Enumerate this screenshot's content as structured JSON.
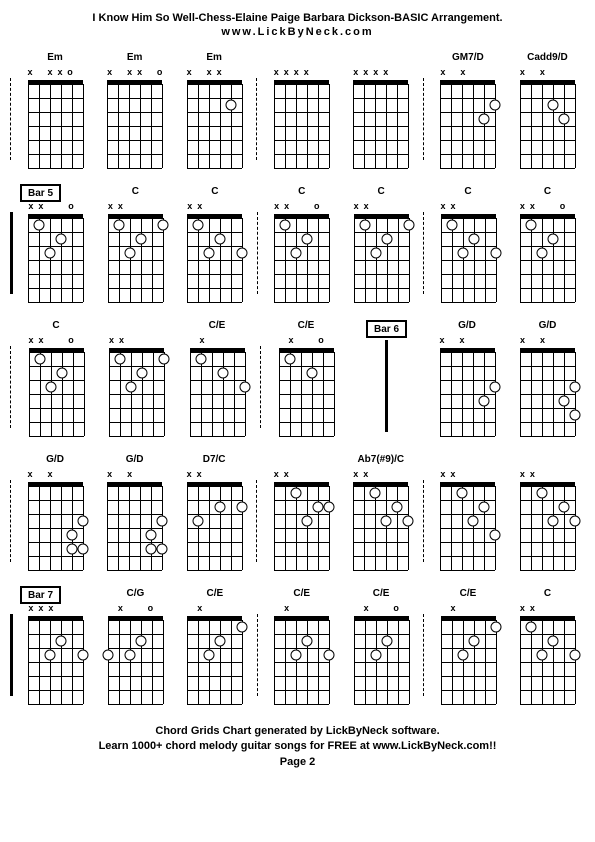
{
  "title": "I Know Him So Well-Chess-Elaine Paige Barbara Dickson-BASIC Arrangement.",
  "subtitle": "www.LickByNeck.com",
  "footer_line1": "Chord Grids Chart generated by LickByNeck software.",
  "footer_line2": "Learn 1000+ chord melody guitar songs for FREE at www.LickByNeck.com!!",
  "footer_line3": "Page 2",
  "colors": {
    "bg": "#ffffff",
    "fg": "#000000"
  },
  "fretboard": {
    "strings": 6,
    "frets": 6,
    "width": 55,
    "height": 88
  },
  "rows": [
    {
      "leading_bar": true,
      "bar_style": "dash",
      "cells": [
        {
          "label": "Em",
          "marks": [
            "x",
            "",
            "x",
            "x",
            "o",
            ""
          ],
          "dots": [],
          "after_bar": false
        },
        {
          "label": "Em",
          "marks": [
            "x",
            "",
            "x",
            "x",
            "",
            "o"
          ],
          "dots": [],
          "after_bar": false
        },
        {
          "label": "Em",
          "marks": [
            "x",
            "",
            "x",
            "x",
            "",
            ""
          ],
          "dots": [
            [
              2,
              5
            ]
          ],
          "after_bar": true,
          "bar_style": "dash"
        },
        {
          "label": "",
          "marks": [
            "x",
            "x",
            "x",
            "x",
            "",
            ""
          ],
          "dots": [],
          "after_bar": false
        },
        {
          "label": "",
          "marks": [
            "x",
            "x",
            "x",
            "x",
            "",
            ""
          ],
          "dots": [],
          "after_bar": true,
          "bar_style": "dash"
        },
        {
          "label": "GM7/D",
          "marks": [
            "x",
            "",
            "x",
            "",
            "",
            ""
          ],
          "dots": [
            [
              2,
              6
            ],
            [
              3,
              5
            ]
          ],
          "after_bar": false
        },
        {
          "label": "Cadd9/D",
          "marks": [
            "x",
            "",
            "x",
            "",
            "",
            ""
          ],
          "dots": [
            [
              2,
              4
            ],
            [
              3,
              5
            ]
          ],
          "after_bar": false
        }
      ]
    },
    {
      "leading_bar": true,
      "bar_style": "solid",
      "bar_label": "Bar 5",
      "cells": [
        {
          "label": "",
          "marks": [
            "x",
            "x",
            "",
            "",
            "o",
            ""
          ],
          "dots": [
            [
              1,
              2
            ],
            [
              2,
              4
            ],
            [
              3,
              3
            ]
          ],
          "after_bar": false
        },
        {
          "label": "C",
          "marks": [
            "x",
            "x",
            "",
            "",
            "",
            ""
          ],
          "dots": [
            [
              1,
              2
            ],
            [
              1,
              6
            ],
            [
              2,
              4
            ],
            [
              3,
              3
            ]
          ],
          "after_bar": false
        },
        {
          "label": "C",
          "marks": [
            "x",
            "x",
            "",
            "",
            "",
            ""
          ],
          "dots": [
            [
              1,
              2
            ],
            [
              2,
              4
            ],
            [
              3,
              3
            ],
            [
              3,
              6
            ]
          ],
          "after_bar": true,
          "bar_style": "dash"
        },
        {
          "label": "C",
          "marks": [
            "x",
            "x",
            "",
            "",
            "o",
            ""
          ],
          "dots": [
            [
              1,
              2
            ],
            [
              2,
              4
            ],
            [
              3,
              3
            ]
          ],
          "after_bar": false
        },
        {
          "label": "C",
          "marks": [
            "x",
            "x",
            "",
            "",
            "",
            ""
          ],
          "dots": [
            [
              1,
              2
            ],
            [
              1,
              6
            ],
            [
              2,
              4
            ],
            [
              3,
              3
            ]
          ],
          "after_bar": true,
          "bar_style": "dash"
        },
        {
          "label": "C",
          "marks": [
            "x",
            "x",
            "",
            "",
            "",
            ""
          ],
          "dots": [
            [
              1,
              2
            ],
            [
              2,
              4
            ],
            [
              3,
              3
            ],
            [
              3,
              6
            ]
          ],
          "after_bar": false
        },
        {
          "label": "C",
          "marks": [
            "x",
            "x",
            "",
            "",
            "o",
            ""
          ],
          "dots": [
            [
              1,
              2
            ],
            [
              2,
              4
            ],
            [
              3,
              3
            ]
          ],
          "after_bar": false
        }
      ]
    },
    {
      "leading_bar": true,
      "bar_style": "dash",
      "cells": [
        {
          "label": "C",
          "marks": [
            "x",
            "x",
            "",
            "",
            "o",
            ""
          ],
          "dots": [
            [
              1,
              2
            ],
            [
              2,
              4
            ],
            [
              3,
              3
            ]
          ],
          "after_bar": false
        },
        {
          "label": "",
          "marks": [
            "x",
            "x",
            "",
            "",
            "",
            ""
          ],
          "dots": [
            [
              1,
              2
            ],
            [
              1,
              6
            ],
            [
              2,
              4
            ],
            [
              3,
              3
            ]
          ],
          "after_bar": false
        },
        {
          "label": "C/E",
          "marks": [
            "",
            "x",
            "",
            "",
            "",
            ""
          ],
          "dots": [
            [
              1,
              2
            ],
            [
              2,
              4
            ],
            [
              3,
              6
            ]
          ],
          "after_bar": true,
          "bar_style": "dash"
        },
        {
          "label": "C/E",
          "marks": [
            "",
            "x",
            "",
            "",
            "o",
            ""
          ],
          "dots": [
            [
              1,
              2
            ],
            [
              2,
              4
            ]
          ],
          "after_bar": false
        },
        {
          "label": "Bar 6",
          "is_bar_cell": true,
          "bar_label": "Bar 6",
          "after_bar": false,
          "bar_after_style": "solid"
        },
        {
          "label": "G/D",
          "marks": [
            "x",
            "",
            "x",
            "",
            "",
            ""
          ],
          "dots": [
            [
              3,
              6
            ],
            [
              4,
              5
            ]
          ],
          "after_bar": false
        },
        {
          "label": "G/D",
          "marks": [
            "x",
            "",
            "x",
            "",
            "",
            ""
          ],
          "dots": [
            [
              3,
              6
            ],
            [
              4,
              5
            ],
            [
              5,
              6
            ]
          ],
          "after_bar": false
        }
      ]
    },
    {
      "leading_bar": true,
      "bar_style": "dash",
      "cells": [
        {
          "label": "G/D",
          "marks": [
            "x",
            "",
            "x",
            "",
            "",
            ""
          ],
          "dots": [
            [
              3,
              6
            ],
            [
              4,
              5
            ],
            [
              5,
              5
            ],
            [
              5,
              6
            ]
          ],
          "after_bar": false
        },
        {
          "label": "G/D",
          "marks": [
            "x",
            "",
            "x",
            "",
            "",
            ""
          ],
          "dots": [
            [
              3,
              6
            ],
            [
              4,
              5
            ],
            [
              5,
              5
            ],
            [
              5,
              6
            ]
          ],
          "after_bar": false
        },
        {
          "label": "D7/C",
          "marks": [
            "x",
            "x",
            "",
            "",
            "",
            " "
          ],
          "dots": [
            [
              2,
              4
            ],
            [
              2,
              6
            ],
            [
              3,
              2
            ]
          ],
          "after_bar": true,
          "bar_style": "dash"
        },
        {
          "label": "",
          "marks": [
            "x",
            "x",
            "",
            "",
            "",
            ""
          ],
          "dots": [
            [
              1,
              3
            ],
            [
              2,
              5
            ],
            [
              2,
              6
            ],
            [
              3,
              4
            ]
          ],
          "after_bar": false
        },
        {
          "label": "Ab7(#9)/C",
          "marks": [
            "x",
            "x",
            "",
            "",
            "",
            ""
          ],
          "dots": [
            [
              1,
              3
            ],
            [
              2,
              5
            ],
            [
              3,
              4
            ],
            [
              3,
              6
            ]
          ],
          "after_bar": true,
          "bar_style": "dash"
        },
        {
          "label": "",
          "marks": [
            "x",
            "x",
            "",
            "",
            "",
            ""
          ],
          "dots": [
            [
              1,
              3
            ],
            [
              2,
              5
            ],
            [
              3,
              4
            ],
            [
              4,
              6
            ]
          ],
          "after_bar": false
        },
        {
          "label": "",
          "marks": [
            "x",
            "x",
            "",
            "",
            "",
            ""
          ],
          "dots": [
            [
              1,
              3
            ],
            [
              2,
              5
            ],
            [
              3,
              4
            ],
            [
              3,
              6
            ]
          ],
          "after_bar": false
        }
      ]
    },
    {
      "leading_bar": true,
      "bar_style": "solid",
      "bar_label": "Bar 7",
      "cells": [
        {
          "label": "",
          "marks": [
            "x",
            "x",
            "x",
            "",
            "",
            ""
          ],
          "dots": [
            [
              2,
              4
            ],
            [
              3,
              3
            ],
            [
              3,
              6
            ]
          ],
          "after_bar": false
        },
        {
          "label": "C/G",
          "marks": [
            "",
            "x",
            "",
            "",
            "o",
            ""
          ],
          "dots": [
            [
              2,
              4
            ],
            [
              3,
              1
            ],
            [
              3,
              3
            ]
          ],
          "after_bar": false
        },
        {
          "label": "C/E",
          "marks": [
            "",
            "x",
            "",
            "",
            "",
            ""
          ],
          "dots": [
            [
              1,
              6
            ],
            [
              2,
              4
            ],
            [
              3,
              3
            ]
          ],
          "after_bar": true,
          "bar_style": "dash"
        },
        {
          "label": "C/E",
          "marks": [
            "",
            "x",
            "",
            "",
            "",
            ""
          ],
          "dots": [
            [
              2,
              4
            ],
            [
              3,
              3
            ],
            [
              3,
              6
            ]
          ],
          "after_bar": false
        },
        {
          "label": "C/E",
          "marks": [
            "",
            "x",
            "",
            "",
            "o",
            ""
          ],
          "dots": [
            [
              2,
              4
            ],
            [
              3,
              3
            ]
          ],
          "after_bar": true,
          "bar_style": "dash"
        },
        {
          "label": "C/E",
          "marks": [
            "",
            "x",
            "",
            "",
            "",
            ""
          ],
          "dots": [
            [
              1,
              6
            ],
            [
              2,
              4
            ],
            [
              3,
              3
            ]
          ],
          "after_bar": false
        },
        {
          "label": "C",
          "marks": [
            "x",
            "x",
            "",
            "",
            "",
            ""
          ],
          "dots": [
            [
              1,
              2
            ],
            [
              2,
              4
            ],
            [
              3,
              3
            ],
            [
              3,
              6
            ]
          ],
          "after_bar": false
        }
      ]
    }
  ]
}
